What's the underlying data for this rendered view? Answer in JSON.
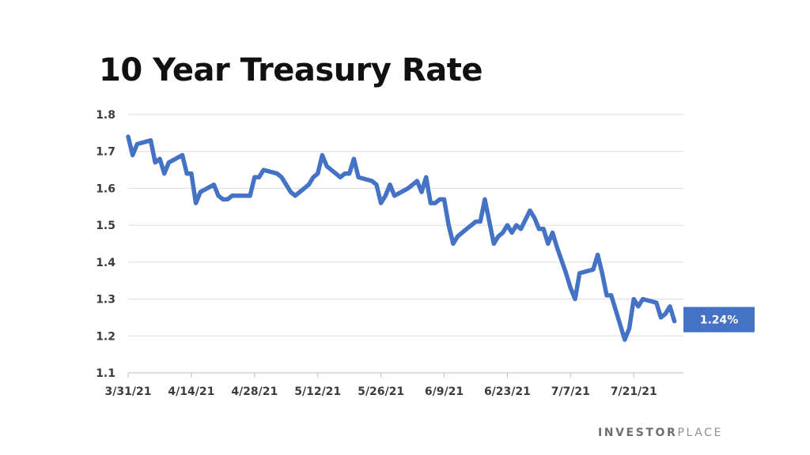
{
  "chart_data": {
    "type": "line",
    "title": "10 Year Treasury Rate",
    "xlabel": "",
    "ylabel": "",
    "ylim": [
      1.1,
      1.8
    ],
    "yticks": [
      "1.1",
      "1.2",
      "1.3",
      "1.4",
      "1.5",
      "1.6",
      "1.7",
      "1.8"
    ],
    "xticks": [
      "3/31/21",
      "4/14/21",
      "4/28/21",
      "5/12/21",
      "5/26/21",
      "6/9/21",
      "6/23/21",
      "7/7/21",
      "7/21/21"
    ],
    "xlim": [
      "2021-03-31",
      "2021-08-01"
    ],
    "grid": true,
    "legend": "none",
    "line_color": "#4472c4",
    "series": [
      {
        "points": [
          [
            "2021-03-31",
            1.74
          ],
          [
            "2021-04-01",
            1.69
          ],
          [
            "2021-04-02",
            1.72
          ],
          [
            "2021-04-05",
            1.73
          ],
          [
            "2021-04-06",
            1.67
          ],
          [
            "2021-04-07",
            1.68
          ],
          [
            "2021-04-08",
            1.64
          ],
          [
            "2021-04-09",
            1.67
          ],
          [
            "2021-04-12",
            1.69
          ],
          [
            "2021-04-13",
            1.64
          ],
          [
            "2021-04-14",
            1.64
          ],
          [
            "2021-04-15",
            1.56
          ],
          [
            "2021-04-16",
            1.59
          ],
          [
            "2021-04-19",
            1.61
          ],
          [
            "2021-04-20",
            1.58
          ],
          [
            "2021-04-21",
            1.57
          ],
          [
            "2021-04-22",
            1.57
          ],
          [
            "2021-04-23",
            1.58
          ],
          [
            "2021-04-26",
            1.58
          ],
          [
            "2021-04-27",
            1.58
          ],
          [
            "2021-04-28",
            1.63
          ],
          [
            "2021-04-29",
            1.63
          ],
          [
            "2021-04-30",
            1.65
          ],
          [
            "2021-05-03",
            1.64
          ],
          [
            "2021-05-04",
            1.63
          ],
          [
            "2021-05-05",
            1.61
          ],
          [
            "2021-05-06",
            1.59
          ],
          [
            "2021-05-07",
            1.58
          ],
          [
            "2021-05-10",
            1.61
          ],
          [
            "2021-05-11",
            1.63
          ],
          [
            "2021-05-12",
            1.64
          ],
          [
            "2021-05-13",
            1.69
          ],
          [
            "2021-05-14",
            1.66
          ],
          [
            "2021-05-17",
            1.63
          ],
          [
            "2021-05-18",
            1.64
          ],
          [
            "2021-05-19",
            1.64
          ],
          [
            "2021-05-20",
            1.68
          ],
          [
            "2021-05-21",
            1.63
          ],
          [
            "2021-05-24",
            1.62
          ],
          [
            "2021-05-25",
            1.61
          ],
          [
            "2021-05-26",
            1.56
          ],
          [
            "2021-05-27",
            1.58
          ],
          [
            "2021-05-28",
            1.61
          ],
          [
            "2021-05-29",
            1.58
          ],
          [
            "2021-06-01",
            1.6
          ],
          [
            "2021-06-02",
            1.61
          ],
          [
            "2021-06-03",
            1.62
          ],
          [
            "2021-06-04",
            1.59
          ],
          [
            "2021-06-05",
            1.63
          ],
          [
            "2021-06-06",
            1.56
          ],
          [
            "2021-06-07",
            1.56
          ],
          [
            "2021-06-08",
            1.57
          ],
          [
            "2021-06-09",
            1.57
          ],
          [
            "2021-06-10",
            1.5
          ],
          [
            "2021-06-11",
            1.45
          ],
          [
            "2021-06-12",
            1.47
          ],
          [
            "2021-06-14",
            1.49
          ],
          [
            "2021-06-15",
            1.5
          ],
          [
            "2021-06-16",
            1.51
          ],
          [
            "2021-06-17",
            1.51
          ],
          [
            "2021-06-18",
            1.57
          ],
          [
            "2021-06-19",
            1.51
          ],
          [
            "2021-06-20",
            1.45
          ],
          [
            "2021-06-21",
            1.47
          ],
          [
            "2021-06-22",
            1.48
          ],
          [
            "2021-06-23",
            1.5
          ],
          [
            "2021-06-24",
            1.48
          ],
          [
            "2021-06-25",
            1.5
          ],
          [
            "2021-06-26",
            1.49
          ],
          [
            "2021-06-28",
            1.54
          ],
          [
            "2021-06-29",
            1.52
          ],
          [
            "2021-06-30",
            1.49
          ],
          [
            "2021-07-01",
            1.49
          ],
          [
            "2021-07-02",
            1.45
          ],
          [
            "2021-07-03",
            1.48
          ],
          [
            "2021-07-04",
            1.44
          ],
          [
            "2021-07-06",
            1.37
          ],
          [
            "2021-07-07",
            1.33
          ],
          [
            "2021-07-08",
            1.3
          ],
          [
            "2021-07-09",
            1.37
          ],
          [
            "2021-07-12",
            1.38
          ],
          [
            "2021-07-13",
            1.42
          ],
          [
            "2021-07-14",
            1.37
          ],
          [
            "2021-07-15",
            1.31
          ],
          [
            "2021-07-16",
            1.31
          ],
          [
            "2021-07-19",
            1.19
          ],
          [
            "2021-07-20",
            1.22
          ],
          [
            "2021-07-21",
            1.3
          ],
          [
            "2021-07-22",
            1.28
          ],
          [
            "2021-07-23",
            1.3
          ],
          [
            "2021-07-26",
            1.29
          ],
          [
            "2021-07-27",
            1.25
          ],
          [
            "2021-07-28",
            1.26
          ],
          [
            "2021-07-29",
            1.28
          ],
          [
            "2021-07-30",
            1.24
          ]
        ]
      }
    ],
    "callout": {
      "text": "1.24%",
      "value": 1.24,
      "color": "#4472c4"
    }
  },
  "brand": {
    "primary": "INVESTOR",
    "secondary": "PLACE"
  }
}
